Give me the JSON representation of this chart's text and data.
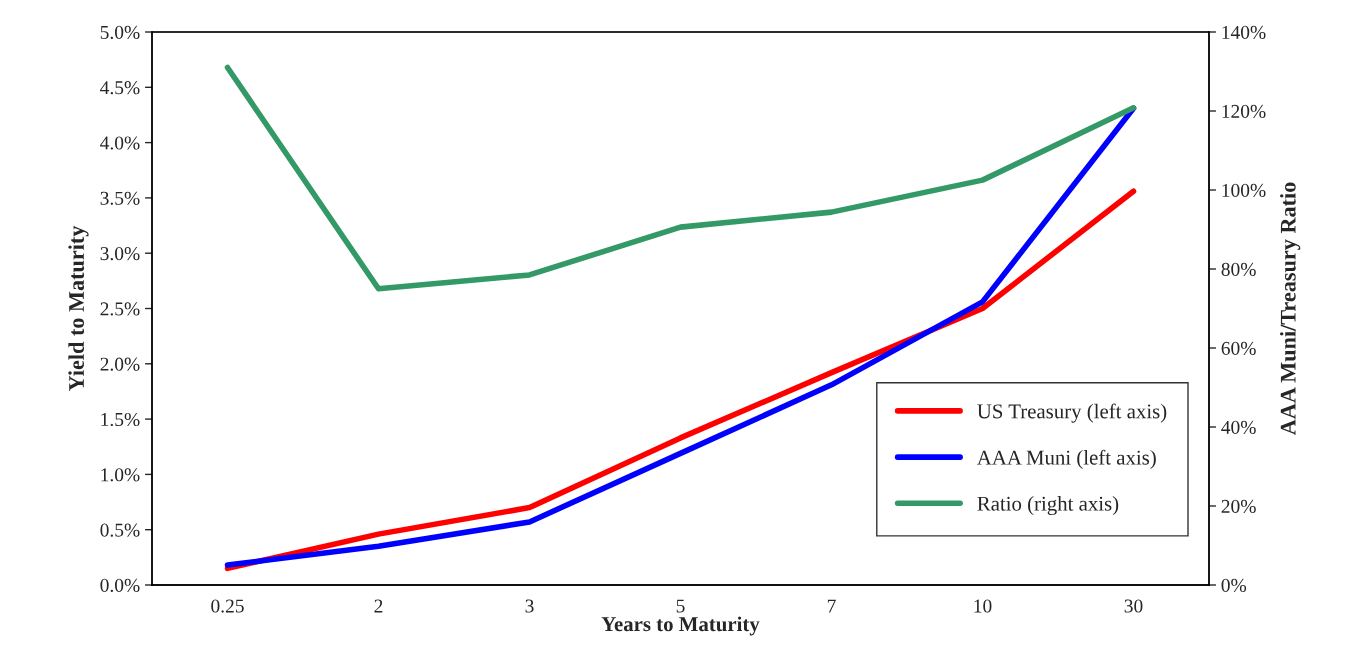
{
  "chart_data": {
    "type": "line",
    "xlabel": "Years to Maturity",
    "ylabel": "Yield to Maturity",
    "y2label": "AAA Muni/Treasury Ratio",
    "categories": [
      "0.25",
      "2",
      "3",
      "5",
      "7",
      "10",
      "30"
    ],
    "series": [
      {
        "name": "US Treasury (left axis)",
        "color": "#ff0000",
        "values": [
          0.15,
          0.46,
          0.7,
          1.33,
          1.92,
          2.5,
          3.56
        ]
      },
      {
        "name": "AAA Muni (left axis)",
        "color": "#0000ff",
        "values": [
          0.18,
          0.35,
          0.57,
          1.19,
          1.81,
          2.56,
          4.31
        ]
      },
      {
        "name": "Ratio (right axis)",
        "color": "#339966",
        "axis": "y2",
        "values": [
          131,
          75,
          78.5,
          90.6,
          94.4,
          102.5,
          120.8
        ]
      }
    ],
    "ylim": [
      0,
      5
    ],
    "yticks": [
      {
        "value": 0,
        "label": "0.0%"
      },
      {
        "value": 0.5,
        "label": "0.5%"
      },
      {
        "value": 1,
        "label": "1.0%"
      },
      {
        "value": 1.5,
        "label": "1.5%"
      },
      {
        "value": 2,
        "label": "2.0%"
      },
      {
        "value": 2.5,
        "label": "2.5%"
      },
      {
        "value": 3,
        "label": "3.0%"
      },
      {
        "value": 3.5,
        "label": "3.5%"
      },
      {
        "value": 4,
        "label": "4.0%"
      },
      {
        "value": 4.5,
        "label": "4.5%"
      },
      {
        "value": 5,
        "label": "5.0%"
      }
    ],
    "y2lim": [
      0,
      140
    ],
    "y2ticks": [
      {
        "value": 0,
        "label": "0%"
      },
      {
        "value": 20,
        "label": "20%"
      },
      {
        "value": 40,
        "label": "40%"
      },
      {
        "value": 60,
        "label": "60%"
      },
      {
        "value": 80,
        "label": "80%"
      },
      {
        "value": 100,
        "label": "100%"
      },
      {
        "value": 120,
        "label": "120%"
      },
      {
        "value": 140,
        "label": "140%"
      }
    ],
    "legend": "bottom right",
    "grid": false,
    "marker": "none",
    "line_style": "solid"
  }
}
